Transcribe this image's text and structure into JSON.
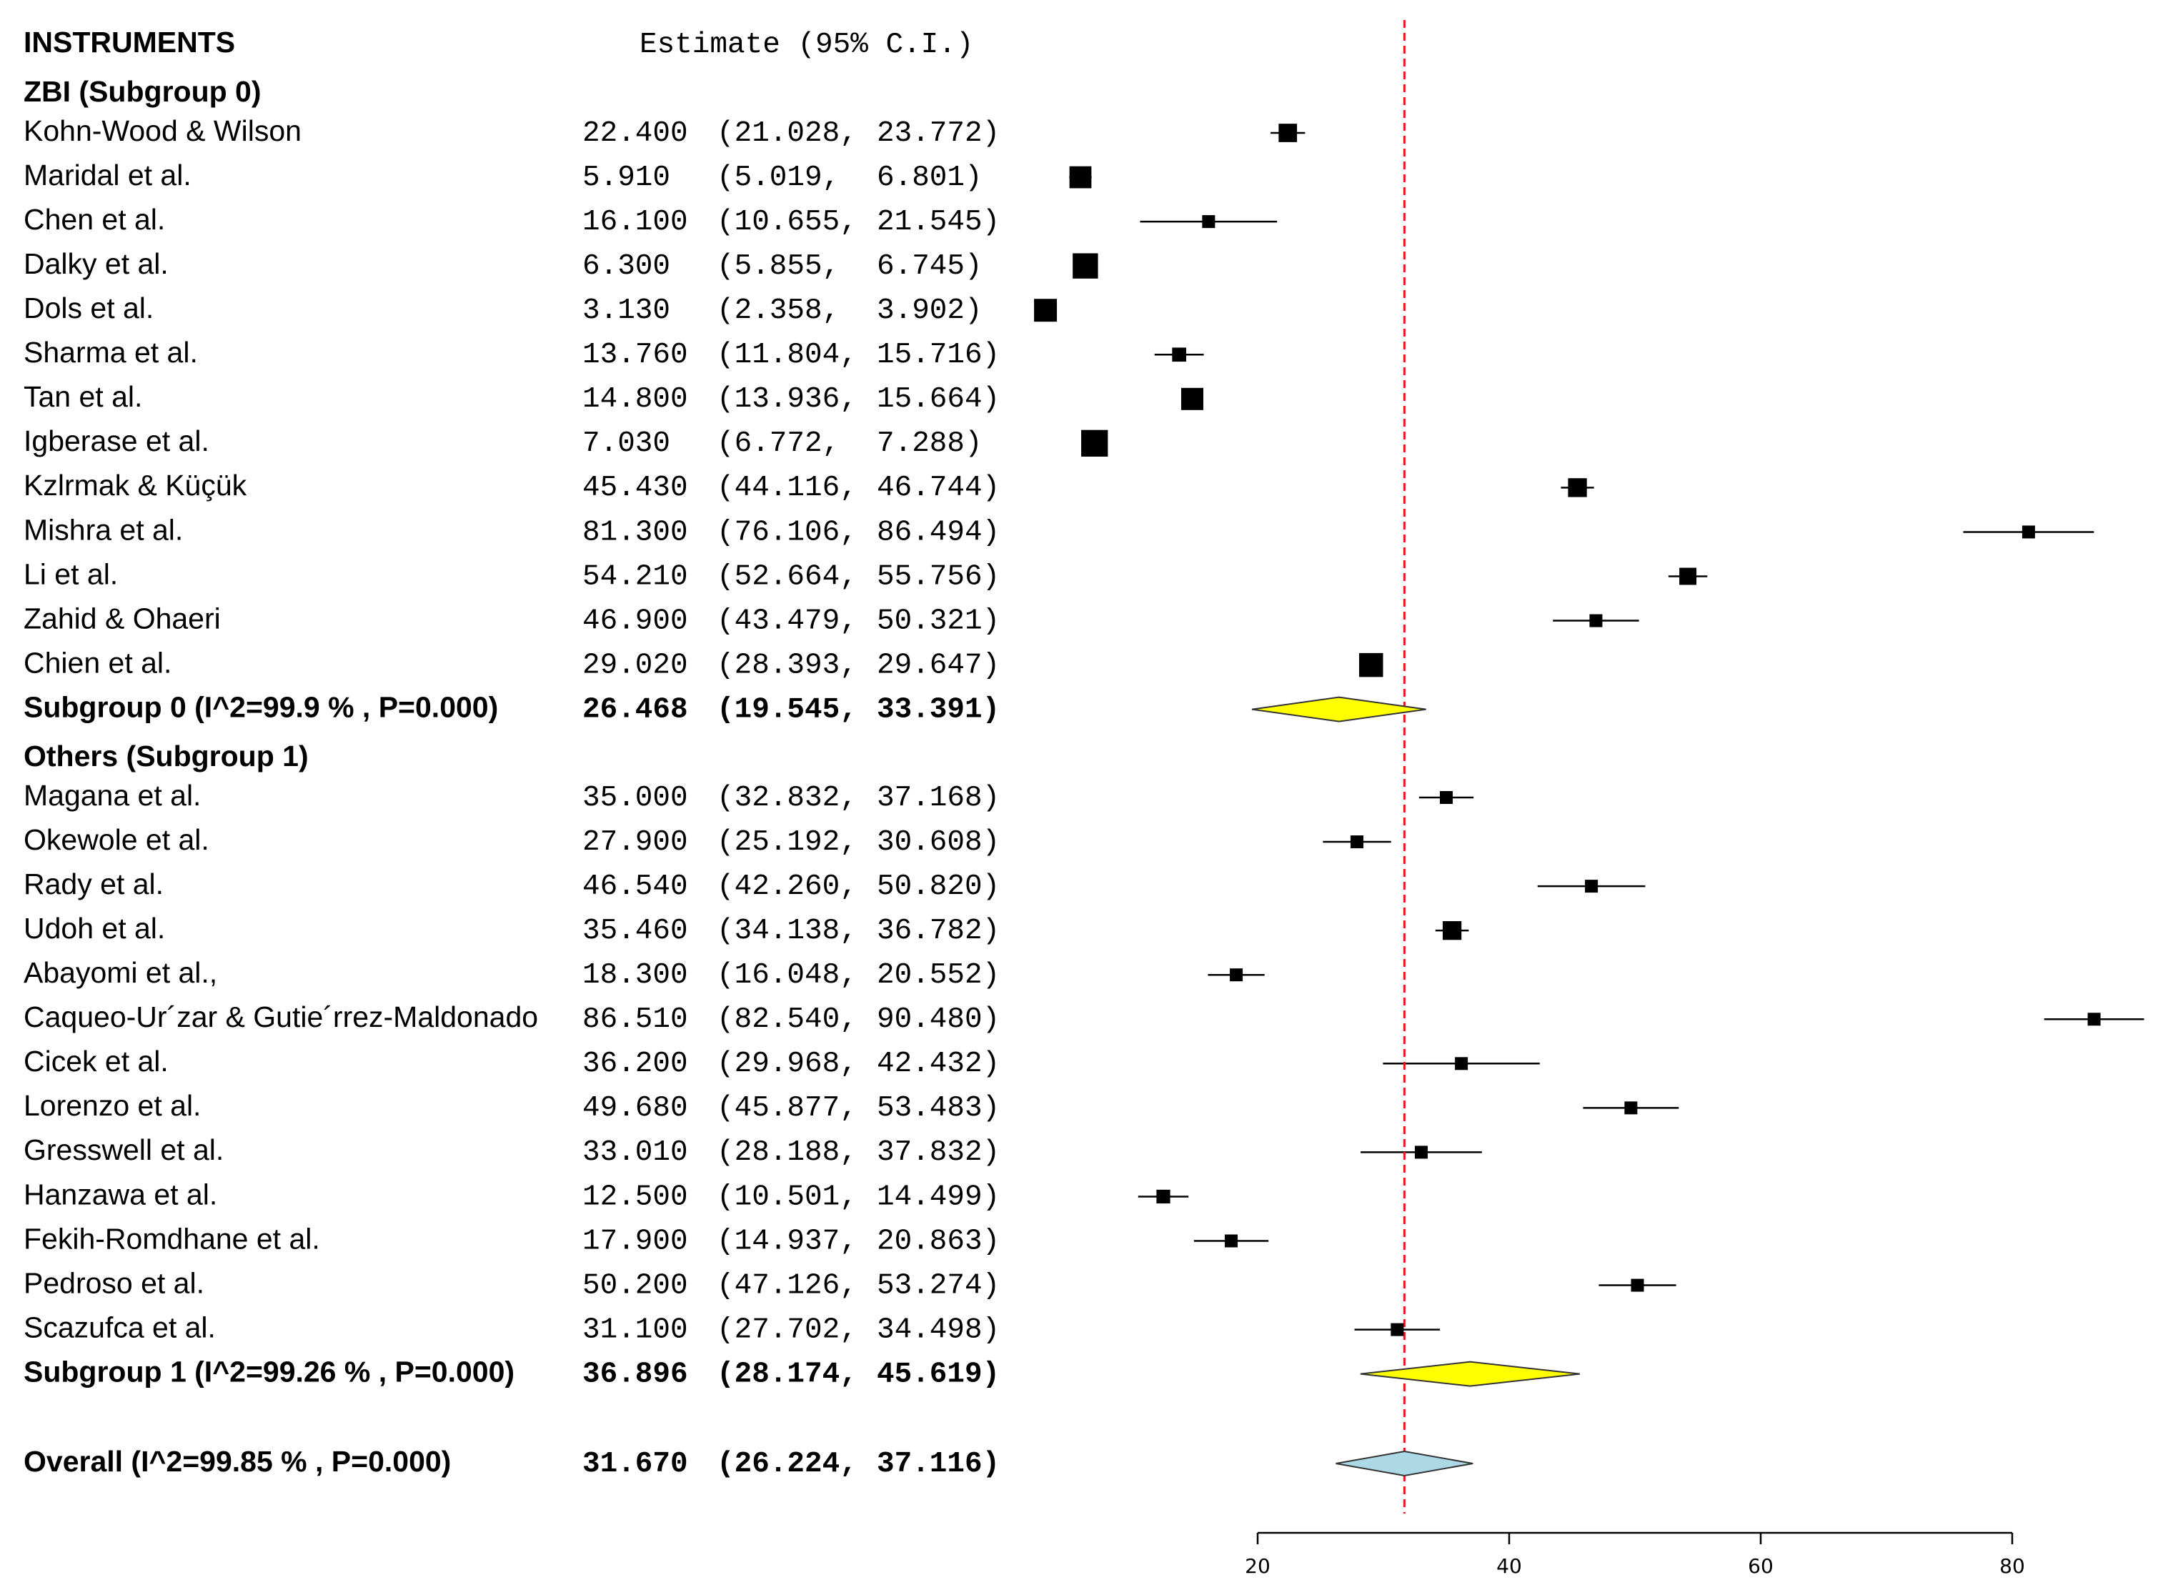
{
  "chart_data": {
    "type": "forest",
    "header": {
      "left": "INSTRUMENTS",
      "right": "Estimate (95% C.I.)"
    },
    "groups": [
      {
        "title": "ZBI (Subgroup 0)",
        "studies": [
          {
            "name": "Kohn-Wood & Wilson",
            "est": 22.4,
            "lo": 21.028,
            "hi": 23.772,
            "est_text": "22.400",
            "lo_text": "(21.028,",
            "hi_text": "23.772)"
          },
          {
            "name": "Maridal et al.",
            "est": 5.91,
            "lo": 5.019,
            "hi": 6.801,
            "est_text": "5.910",
            "lo_text": "(5.019,",
            "hi_text": "6.801)"
          },
          {
            "name": "Chen et al.",
            "est": 16.1,
            "lo": 10.655,
            "hi": 21.545,
            "est_text": "16.100",
            "lo_text": "(10.655,",
            "hi_text": "21.545)"
          },
          {
            "name": "Dalky et al.",
            "est": 6.3,
            "lo": 5.855,
            "hi": 6.745,
            "est_text": "6.300",
            "lo_text": "(5.855,",
            "hi_text": "6.745)"
          },
          {
            "name": "Dols et al.",
            "est": 3.13,
            "lo": 2.358,
            "hi": 3.902,
            "est_text": "3.130",
            "lo_text": "(2.358,",
            "hi_text": "3.902)"
          },
          {
            "name": "Sharma et al.",
            "est": 13.76,
            "lo": 11.804,
            "hi": 15.716,
            "est_text": "13.760",
            "lo_text": "(11.804,",
            "hi_text": "15.716)"
          },
          {
            "name": "Tan et al.",
            "est": 14.8,
            "lo": 13.936,
            "hi": 15.664,
            "est_text": "14.800",
            "lo_text": "(13.936,",
            "hi_text": "15.664)"
          },
          {
            "name": "Igberase et al.",
            "est": 7.03,
            "lo": 6.772,
            "hi": 7.288,
            "est_text": "7.030",
            "lo_text": "(6.772,",
            "hi_text": "7.288)"
          },
          {
            "name": "Kzlrmak & Küçük",
            "est": 45.43,
            "lo": 44.116,
            "hi": 46.744,
            "est_text": "45.430",
            "lo_text": "(44.116,",
            "hi_text": "46.744)"
          },
          {
            "name": "Mishra et al.",
            "est": 81.3,
            "lo": 76.106,
            "hi": 86.494,
            "est_text": "81.300",
            "lo_text": "(76.106,",
            "hi_text": "86.494)"
          },
          {
            "name": "Li et al.",
            "est": 54.21,
            "lo": 52.664,
            "hi": 55.756,
            "est_text": "54.210",
            "lo_text": "(52.664,",
            "hi_text": "55.756)"
          },
          {
            "name": "Zahid  & Ohaeri",
            "est": 46.9,
            "lo": 43.479,
            "hi": 50.321,
            "est_text": "46.900",
            "lo_text": "(43.479,",
            "hi_text": "50.321)"
          },
          {
            "name": "Chien et al.",
            "est": 29.02,
            "lo": 28.393,
            "hi": 29.647,
            "est_text": "29.020",
            "lo_text": "(28.393,",
            "hi_text": "29.647)"
          }
        ],
        "summary": {
          "name": "Subgroup 0 (I^2=99.9 % , P=0.000)",
          "est": 26.468,
          "lo": 19.545,
          "hi": 33.391,
          "est_text": "26.468",
          "lo_text": "(19.545,",
          "hi_text": "33.391)",
          "color": "#ffff00"
        }
      },
      {
        "title": "Others (Subgroup 1)",
        "studies": [
          {
            "name": "Magana et al.",
            "est": 35.0,
            "lo": 32.832,
            "hi": 37.168,
            "est_text": "35.000",
            "lo_text": "(32.832,",
            "hi_text": "37.168)"
          },
          {
            "name": "Okewole et al.",
            "est": 27.9,
            "lo": 25.192,
            "hi": 30.608,
            "est_text": "27.900",
            "lo_text": "(25.192,",
            "hi_text": "30.608)"
          },
          {
            "name": "Rady et al.",
            "est": 46.54,
            "lo": 42.26,
            "hi": 50.82,
            "est_text": "46.540",
            "lo_text": "(42.260,",
            "hi_text": "50.820)"
          },
          {
            "name": "Udoh et al.",
            "est": 35.46,
            "lo": 34.138,
            "hi": 36.782,
            "est_text": "35.460",
            "lo_text": "(34.138,",
            "hi_text": "36.782)"
          },
          {
            "name": "Abayomi et al.,",
            "est": 18.3,
            "lo": 16.048,
            "hi": 20.552,
            "est_text": "18.300",
            "lo_text": "(16.048,",
            "hi_text": "20.552)"
          },
          {
            "name": "Caqueo-Ur´zar & Gutie´rrez-Maldonado",
            "est": 86.51,
            "lo": 82.54,
            "hi": 90.48,
            "est_text": "86.510",
            "lo_text": "(82.540,",
            "hi_text": "90.480)"
          },
          {
            "name": "Cicek et al.",
            "est": 36.2,
            "lo": 29.968,
            "hi": 42.432,
            "est_text": "36.200",
            "lo_text": "(29.968,",
            "hi_text": "42.432)"
          },
          {
            "name": "Lorenzo et al.",
            "est": 49.68,
            "lo": 45.877,
            "hi": 53.483,
            "est_text": "49.680",
            "lo_text": "(45.877,",
            "hi_text": "53.483)"
          },
          {
            "name": "Gresswell et al.",
            "est": 33.01,
            "lo": 28.188,
            "hi": 37.832,
            "est_text": "33.010",
            "lo_text": "(28.188,",
            "hi_text": "37.832)"
          },
          {
            "name": "Hanzawa et al.",
            "est": 12.5,
            "lo": 10.501,
            "hi": 14.499,
            "est_text": "12.500",
            "lo_text": "(10.501,",
            "hi_text": "14.499)"
          },
          {
            "name": "Fekih-Romdhane et al.",
            "est": 17.9,
            "lo": 14.937,
            "hi": 20.863,
            "est_text": "17.900",
            "lo_text": "(14.937,",
            "hi_text": "20.863)"
          },
          {
            "name": "Pedroso et al.",
            "est": 50.2,
            "lo": 47.126,
            "hi": 53.274,
            "est_text": "50.200",
            "lo_text": "(47.126,",
            "hi_text": "53.274)"
          },
          {
            "name": "Scazufca et al.",
            "est": 31.1,
            "lo": 27.702,
            "hi": 34.498,
            "est_text": "31.100",
            "lo_text": "(27.702,",
            "hi_text": "34.498)"
          }
        ],
        "summary": {
          "name": "Subgroup 1 (I^2=99.26 % , P=0.000)",
          "est": 36.896,
          "lo": 28.174,
          "hi": 45.619,
          "est_text": "36.896",
          "lo_text": "(28.174,",
          "hi_text": "45.619)",
          "color": "#ffff00"
        }
      }
    ],
    "overall": {
      "name": "Overall (I^2=99.85 % , P=0.000)",
      "est": 31.67,
      "lo": 26.224,
      "hi": 37.116,
      "est_text": "31.670",
      "lo_text": "(26.224,",
      "hi_text": "37.116)",
      "color": "#add8e6"
    },
    "reference_line": {
      "value": 31.67,
      "color": "#e8171e",
      "style": "dashed"
    },
    "x_axis": {
      "ticks": [
        20,
        40,
        60,
        80
      ],
      "tick_labels": [
        "20",
        "40",
        "60",
        "80"
      ]
    },
    "colors": {
      "marker": "#000000",
      "ci_line": "#000000"
    }
  }
}
